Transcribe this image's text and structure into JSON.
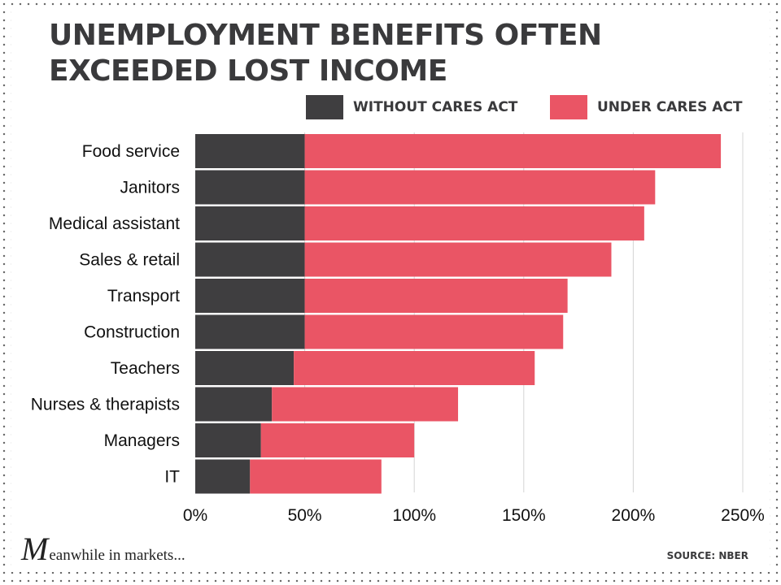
{
  "title": "UNEMPLOYMENT BENEFITS OFTEN EXCEEDED LOST INCOME",
  "colors": {
    "without": "#3f3e40",
    "under": "#ea5565",
    "grid": "#d4d4d4"
  },
  "chart_data": {
    "type": "bar",
    "orientation": "horizontal",
    "stacked": true,
    "title": "UNEMPLOYMENT BENEFITS OFTEN EXCEEDED LOST INCOME",
    "categories": [
      "Food service",
      "Janitors",
      "Medical assistant",
      "Sales & retail",
      "Transport",
      "Construction",
      "Teachers",
      "Nurses & therapists",
      "Managers",
      "IT"
    ],
    "series": [
      {
        "name": "WITHOUT CARES ACT",
        "values": [
          50,
          50,
          50,
          50,
          50,
          50,
          45,
          35,
          30,
          25
        ]
      },
      {
        "name": "UNDER CARES ACT",
        "values": [
          190,
          160,
          155,
          140,
          120,
          118,
          110,
          85,
          70,
          60
        ]
      }
    ],
    "totals": [
      240,
      210,
      205,
      190,
      170,
      168,
      155,
      120,
      100,
      85
    ],
    "xlim": [
      0,
      250
    ],
    "xticks": [
      0,
      50,
      100,
      150,
      200,
      250
    ],
    "xtick_labels": [
      "0%",
      "50%",
      "100%",
      "150%",
      "200%",
      "250%"
    ],
    "grid": true,
    "legend_position": "top-right",
    "xlabel": "",
    "ylabel": ""
  },
  "legend": {
    "without_label": "WITHOUT CARES ACT",
    "under_label": "UNDER CARES ACT"
  },
  "footer": {
    "brand_initial": "M",
    "brand_rest": "eanwhile in markets...",
    "source": "SOURCE: NBER"
  }
}
